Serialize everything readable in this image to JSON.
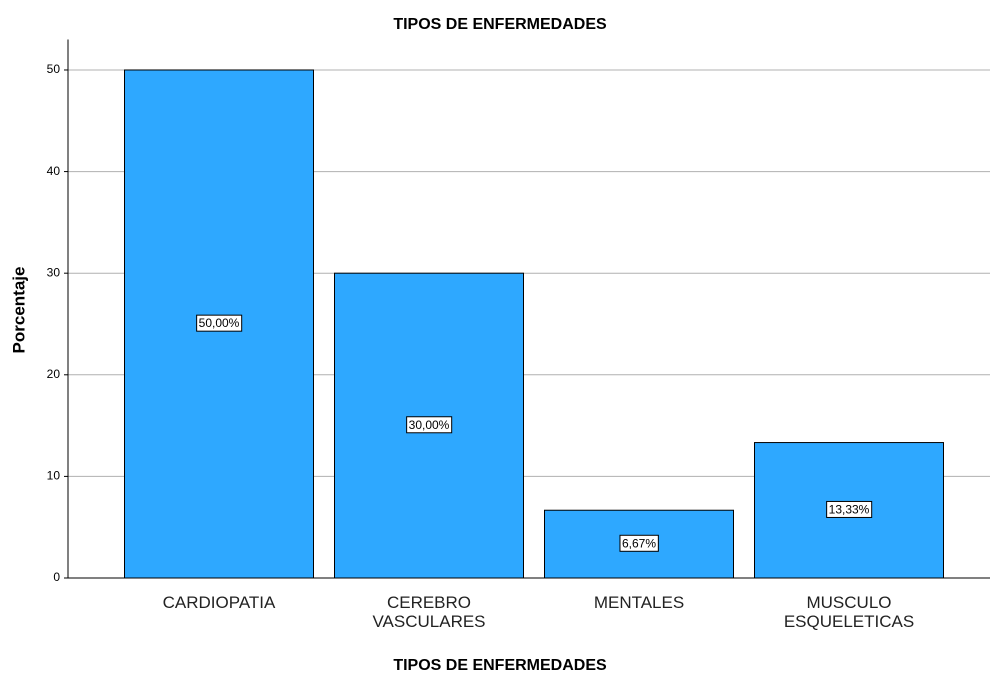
{
  "chart_data": {
    "type": "bar",
    "title": "TIPOS DE ENFERMEDADES",
    "xlabel": "TIPOS DE ENFERMEDADES",
    "ylabel": "Porcentaje",
    "categories": [
      "CARDIOPATIA",
      "CEREBRO VASCULARES",
      "MENTALES",
      "MUSCULO ESQUELETICAS"
    ],
    "values": [
      50,
      30,
      6.67,
      13.33
    ],
    "value_labels": [
      "50,00%",
      "30,00%",
      "6,67%",
      "13,33%"
    ],
    "color": "#2ea8ff",
    "ylim": [
      0,
      53
    ],
    "yticks": [
      0,
      10,
      20,
      30,
      40,
      50
    ],
    "grid": true
  }
}
